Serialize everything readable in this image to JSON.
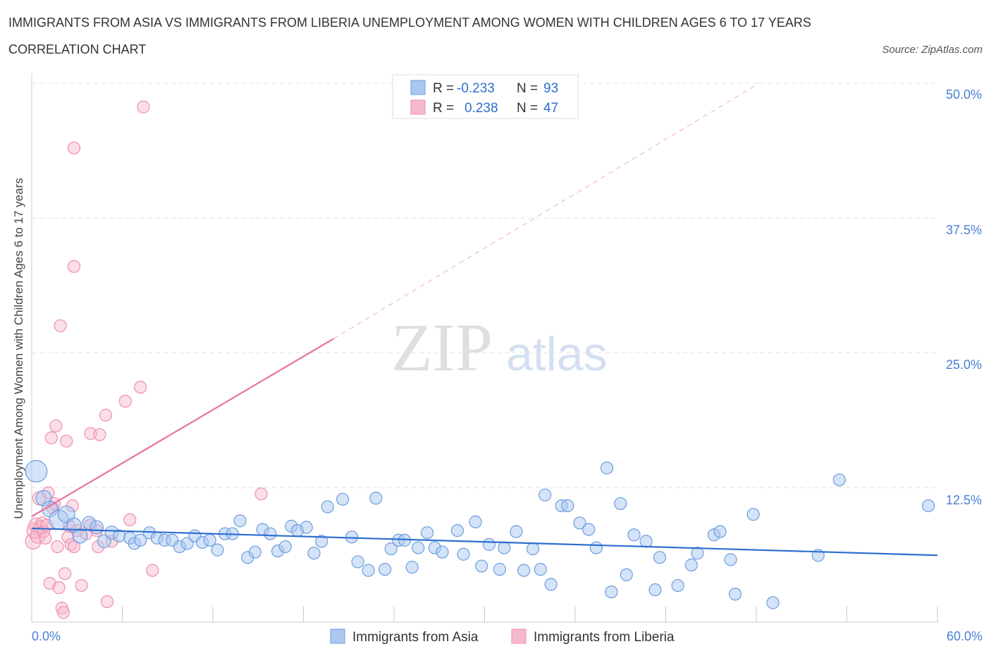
{
  "header": {
    "title": "IMMIGRANTS FROM ASIA VS IMMIGRANTS FROM LIBERIA UNEMPLOYMENT AMONG WOMEN WITH CHILDREN AGES 6 TO 17 YEARS",
    "subtitle": "CORRELATION CHART",
    "source": "Source: ZipAtlas.com"
  },
  "watermark": {
    "zip": "ZIP",
    "atlas": "atlas"
  },
  "colors": {
    "asia_fill": "#aac8f0",
    "asia_stroke": "#6d9de0",
    "asia_line": "#2d6fcf",
    "liberia_fill": "#f6b9cc",
    "liberia_stroke": "#ee8fab",
    "liberia_line": "#e8729a",
    "tick_label": "#4a7fd4",
    "grid": "#e3e3e3"
  },
  "legend_top": {
    "rows": [
      {
        "r_label": "R =",
        "r_value": "-0.233",
        "n_label": "N =",
        "n_value": "93"
      },
      {
        "r_label": "R =",
        "r_value": "0.238",
        "n_label": "N =",
        "n_value": "47"
      }
    ]
  },
  "chart_data": {
    "type": "scatter",
    "title": "IMMIGRANTS FROM ASIA VS IMMIGRANTS FROM LIBERIA UNEMPLOYMENT AMONG WOMEN WITH CHILDREN AGES 6 TO 17 YEARS",
    "xlabel": "",
    "ylabel": "Unemployment Among Women with Children Ages 6 to 17 years",
    "xlim": [
      0,
      60
    ],
    "ylim": [
      0,
      50
    ],
    "x_tick_labels": [
      "0.0%",
      "60.0%"
    ],
    "y_ticks": [
      12.5,
      25.0,
      37.5,
      50.0
    ],
    "y_tick_labels": [
      "12.5%",
      "25.0%",
      "37.5%",
      "50.0%"
    ],
    "grid": true,
    "legend_position": "bottom",
    "series": [
      {
        "name": "Immigrants from Asia",
        "R": -0.233,
        "N": 93,
        "trend": {
          "x": [
            0,
            60
          ],
          "y": [
            8.7,
            6.2
          ],
          "dashed_extension": false
        },
        "points": [
          [
            0.3,
            14.0,
            1.8
          ],
          [
            0.8,
            11.5,
            1.3
          ],
          [
            1.2,
            10.5,
            1.3
          ],
          [
            1.8,
            9.5,
            1.6
          ],
          [
            2.3,
            10.0,
            1.4
          ],
          [
            2.8,
            9.0,
            1.2
          ],
          [
            3.2,
            8.0,
            1.2
          ],
          [
            3.8,
            9.2,
            1.1
          ],
          [
            4.3,
            8.8,
            1.1
          ],
          [
            4.8,
            7.5,
            1.1
          ],
          [
            5.3,
            8.3,
            1.1
          ],
          [
            5.8,
            8.0,
            1.0
          ],
          [
            6.5,
            7.8,
            1.0
          ],
          [
            6.8,
            7.3,
            1.0
          ],
          [
            7.2,
            7.6,
            1.0
          ],
          [
            7.8,
            8.3,
            1.0
          ],
          [
            8.3,
            7.8,
            1.0
          ],
          [
            8.8,
            7.6,
            1.0
          ],
          [
            9.3,
            7.6,
            1.0
          ],
          [
            9.8,
            7.0,
            1.0
          ],
          [
            10.3,
            7.3,
            1.0
          ],
          [
            10.8,
            8.0,
            1.0
          ],
          [
            11.3,
            7.4,
            1.0
          ],
          [
            11.8,
            7.6,
            1.0
          ],
          [
            12.3,
            6.7,
            1.0
          ],
          [
            12.8,
            8.2,
            1.0
          ],
          [
            13.3,
            8.2,
            1.0
          ],
          [
            13.8,
            9.4,
            1.0
          ],
          [
            14.3,
            6.0,
            1.0
          ],
          [
            14.8,
            6.5,
            1.0
          ],
          [
            15.3,
            8.6,
            1.0
          ],
          [
            15.8,
            8.2,
            1.0
          ],
          [
            16.3,
            6.6,
            1.0
          ],
          [
            16.8,
            7.0,
            1.0
          ],
          [
            17.2,
            8.9,
            1.0
          ],
          [
            17.6,
            8.5,
            1.0
          ],
          [
            18.2,
            8.8,
            1.0
          ],
          [
            18.7,
            6.4,
            1.0
          ],
          [
            19.2,
            7.5,
            1.0
          ],
          [
            19.6,
            10.7,
            1.0
          ],
          [
            20.6,
            11.4,
            1.0
          ],
          [
            21.2,
            7.9,
            1.0
          ],
          [
            21.6,
            5.6,
            1.0
          ],
          [
            22.3,
            4.8,
            1.0
          ],
          [
            22.8,
            11.5,
            1.0
          ],
          [
            23.4,
            4.9,
            1.0
          ],
          [
            23.8,
            6.8,
            1.0
          ],
          [
            24.3,
            7.6,
            1.0
          ],
          [
            24.7,
            7.6,
            1.0
          ],
          [
            25.2,
            5.1,
            1.0
          ],
          [
            25.6,
            6.9,
            1.0
          ],
          [
            26.2,
            8.3,
            1.0
          ],
          [
            26.7,
            6.9,
            1.0
          ],
          [
            27.2,
            6.5,
            1.0
          ],
          [
            28.2,
            8.5,
            1.0
          ],
          [
            28.6,
            6.3,
            1.0
          ],
          [
            29.4,
            9.3,
            1.0
          ],
          [
            29.8,
            5.2,
            1.0
          ],
          [
            30.3,
            7.2,
            1.0
          ],
          [
            31.0,
            4.9,
            1.0
          ],
          [
            31.3,
            6.9,
            1.0
          ],
          [
            32.1,
            8.4,
            1.0
          ],
          [
            32.6,
            4.8,
            1.0
          ],
          [
            33.2,
            6.8,
            1.0
          ],
          [
            33.7,
            4.9,
            1.0
          ],
          [
            34.0,
            11.8,
            1.0
          ],
          [
            34.4,
            3.5,
            1.0
          ],
          [
            35.1,
            10.8,
            1.0
          ],
          [
            35.5,
            10.8,
            1.0
          ],
          [
            36.3,
            9.2,
            1.0
          ],
          [
            36.9,
            8.6,
            1.0
          ],
          [
            37.4,
            6.9,
            1.0
          ],
          [
            38.1,
            14.3,
            1.0
          ],
          [
            38.4,
            2.8,
            1.0
          ],
          [
            39.0,
            11.0,
            1.0
          ],
          [
            39.4,
            4.4,
            1.0
          ],
          [
            39.9,
            8.1,
            1.0
          ],
          [
            40.7,
            7.5,
            1.0
          ],
          [
            41.3,
            3.0,
            1.0
          ],
          [
            41.6,
            6.0,
            1.0
          ],
          [
            42.8,
            3.4,
            1.0
          ],
          [
            43.7,
            5.3,
            1.0
          ],
          [
            44.1,
            6.4,
            1.0
          ],
          [
            45.2,
            8.1,
            1.0
          ],
          [
            45.6,
            8.4,
            1.0
          ],
          [
            46.3,
            5.8,
            1.0
          ],
          [
            46.6,
            2.6,
            1.0
          ],
          [
            47.8,
            10.0,
            1.0
          ],
          [
            49.1,
            1.8,
            1.0
          ],
          [
            52.1,
            6.2,
            1.0
          ],
          [
            53.5,
            13.2,
            1.0
          ],
          [
            59.4,
            10.8,
            1.0
          ]
        ]
      },
      {
        "name": "Immigrants from Liberia",
        "R": 0.238,
        "N": 47,
        "trend": {
          "x": [
            0,
            20
          ],
          "y": [
            9.8,
            26.3
          ],
          "dashed_extension": true,
          "dashed_x": [
            20,
            48.2
          ],
          "dashed_y": [
            26.3,
            50.0
          ]
        },
        "points": [
          [
            0.1,
            7.5,
            1.3
          ],
          [
            0.2,
            8.5,
            1.3
          ],
          [
            0.3,
            9.0,
            1.2
          ],
          [
            0.4,
            8.0,
            1.2
          ],
          [
            0.5,
            11.5,
            1.1
          ],
          [
            0.6,
            8.8,
            1.1
          ],
          [
            0.7,
            9.2,
            1.0
          ],
          [
            0.8,
            8.4,
            1.0
          ],
          [
            0.9,
            7.8,
            1.0
          ],
          [
            1.0,
            9.0,
            1.0
          ],
          [
            1.1,
            12.0,
            1.0
          ],
          [
            1.2,
            3.6,
            1.0
          ],
          [
            1.3,
            17.1,
            1.0
          ],
          [
            1.4,
            10.6,
            1.0
          ],
          [
            1.5,
            11.0,
            1.0
          ],
          [
            1.6,
            18.2,
            1.0
          ],
          [
            1.7,
            7.0,
            1.0
          ],
          [
            1.8,
            3.2,
            1.0
          ],
          [
            1.9,
            27.5,
            1.0
          ],
          [
            2.0,
            1.3,
            1.0
          ],
          [
            2.1,
            0.9,
            1.0
          ],
          [
            2.2,
            4.5,
            1.0
          ],
          [
            2.3,
            16.8,
            1.0
          ],
          [
            2.4,
            7.9,
            1.0
          ],
          [
            2.5,
            8.9,
            1.0
          ],
          [
            2.6,
            7.2,
            1.0
          ],
          [
            2.7,
            10.8,
            1.0
          ],
          [
            2.8,
            7.0,
            1.0
          ],
          [
            2.8,
            44.0,
            1.0
          ],
          [
            2.8,
            33.0,
            1.0
          ],
          [
            3.0,
            8.5,
            1.0
          ],
          [
            3.3,
            3.4,
            1.0
          ],
          [
            3.6,
            8.2,
            1.0
          ],
          [
            3.9,
            9.0,
            1.0
          ],
          [
            3.9,
            17.5,
            1.0
          ],
          [
            4.3,
            8.5,
            1.0
          ],
          [
            4.4,
            7.0,
            1.0
          ],
          [
            4.5,
            17.4,
            1.0
          ],
          [
            4.9,
            19.2,
            1.0
          ],
          [
            5.0,
            1.9,
            1.0
          ],
          [
            5.3,
            7.5,
            1.0
          ],
          [
            6.2,
            20.5,
            1.0
          ],
          [
            6.5,
            9.5,
            1.0
          ],
          [
            7.2,
            21.8,
            1.0
          ],
          [
            7.4,
            47.8,
            1.0
          ],
          [
            8.0,
            4.8,
            1.0
          ],
          [
            15.2,
            11.9,
            1.0
          ]
        ]
      }
    ]
  }
}
